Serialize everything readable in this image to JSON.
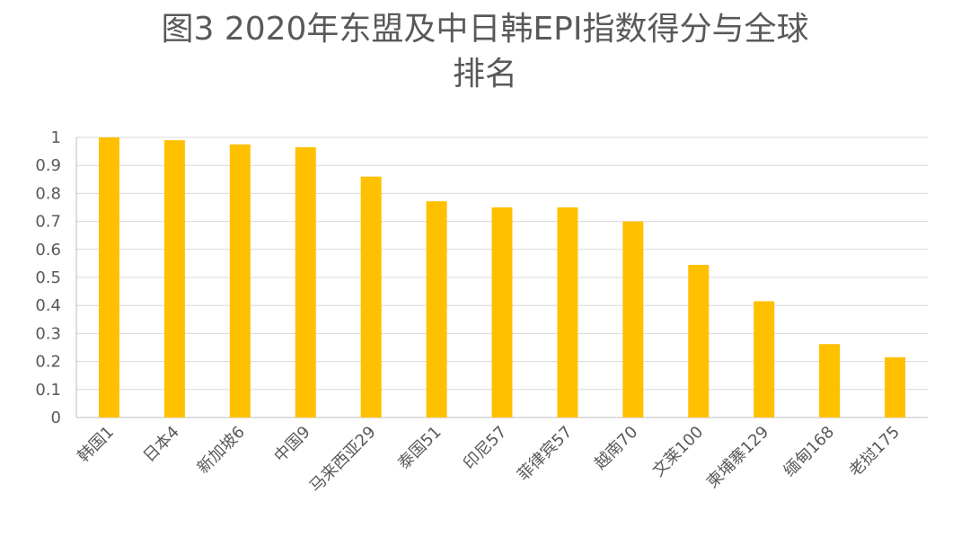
{
  "title_line1": "图3  2020年东盟及中日韩EPI指数得分与全球",
  "title_line2": "排名",
  "chart_data": {
    "type": "bar",
    "title": "图3  2020年东盟及中日韩EPI指数得分与全球排名",
    "xlabel": "",
    "ylabel": "",
    "ylim": [
      0,
      1
    ],
    "yticks": [
      "0",
      "0.1",
      "0.2",
      "0.3",
      "0.4",
      "0.5",
      "0.6",
      "0.7",
      "0.8",
      "0.9",
      "1"
    ],
    "grid": true,
    "bar_color": "#FFC000",
    "categories": [
      "韩国1",
      "日本4",
      "新加坡6",
      "中国9",
      "马来西亚29",
      "泰国51",
      "印尼57",
      "菲律宾57",
      "越南70",
      "文莱100",
      "柬埔寨129",
      "缅甸168",
      "老挝175"
    ],
    "values": [
      1.0,
      0.99,
      0.975,
      0.965,
      0.86,
      0.772,
      0.75,
      0.75,
      0.7,
      0.545,
      0.415,
      0.262,
      0.215
    ]
  }
}
